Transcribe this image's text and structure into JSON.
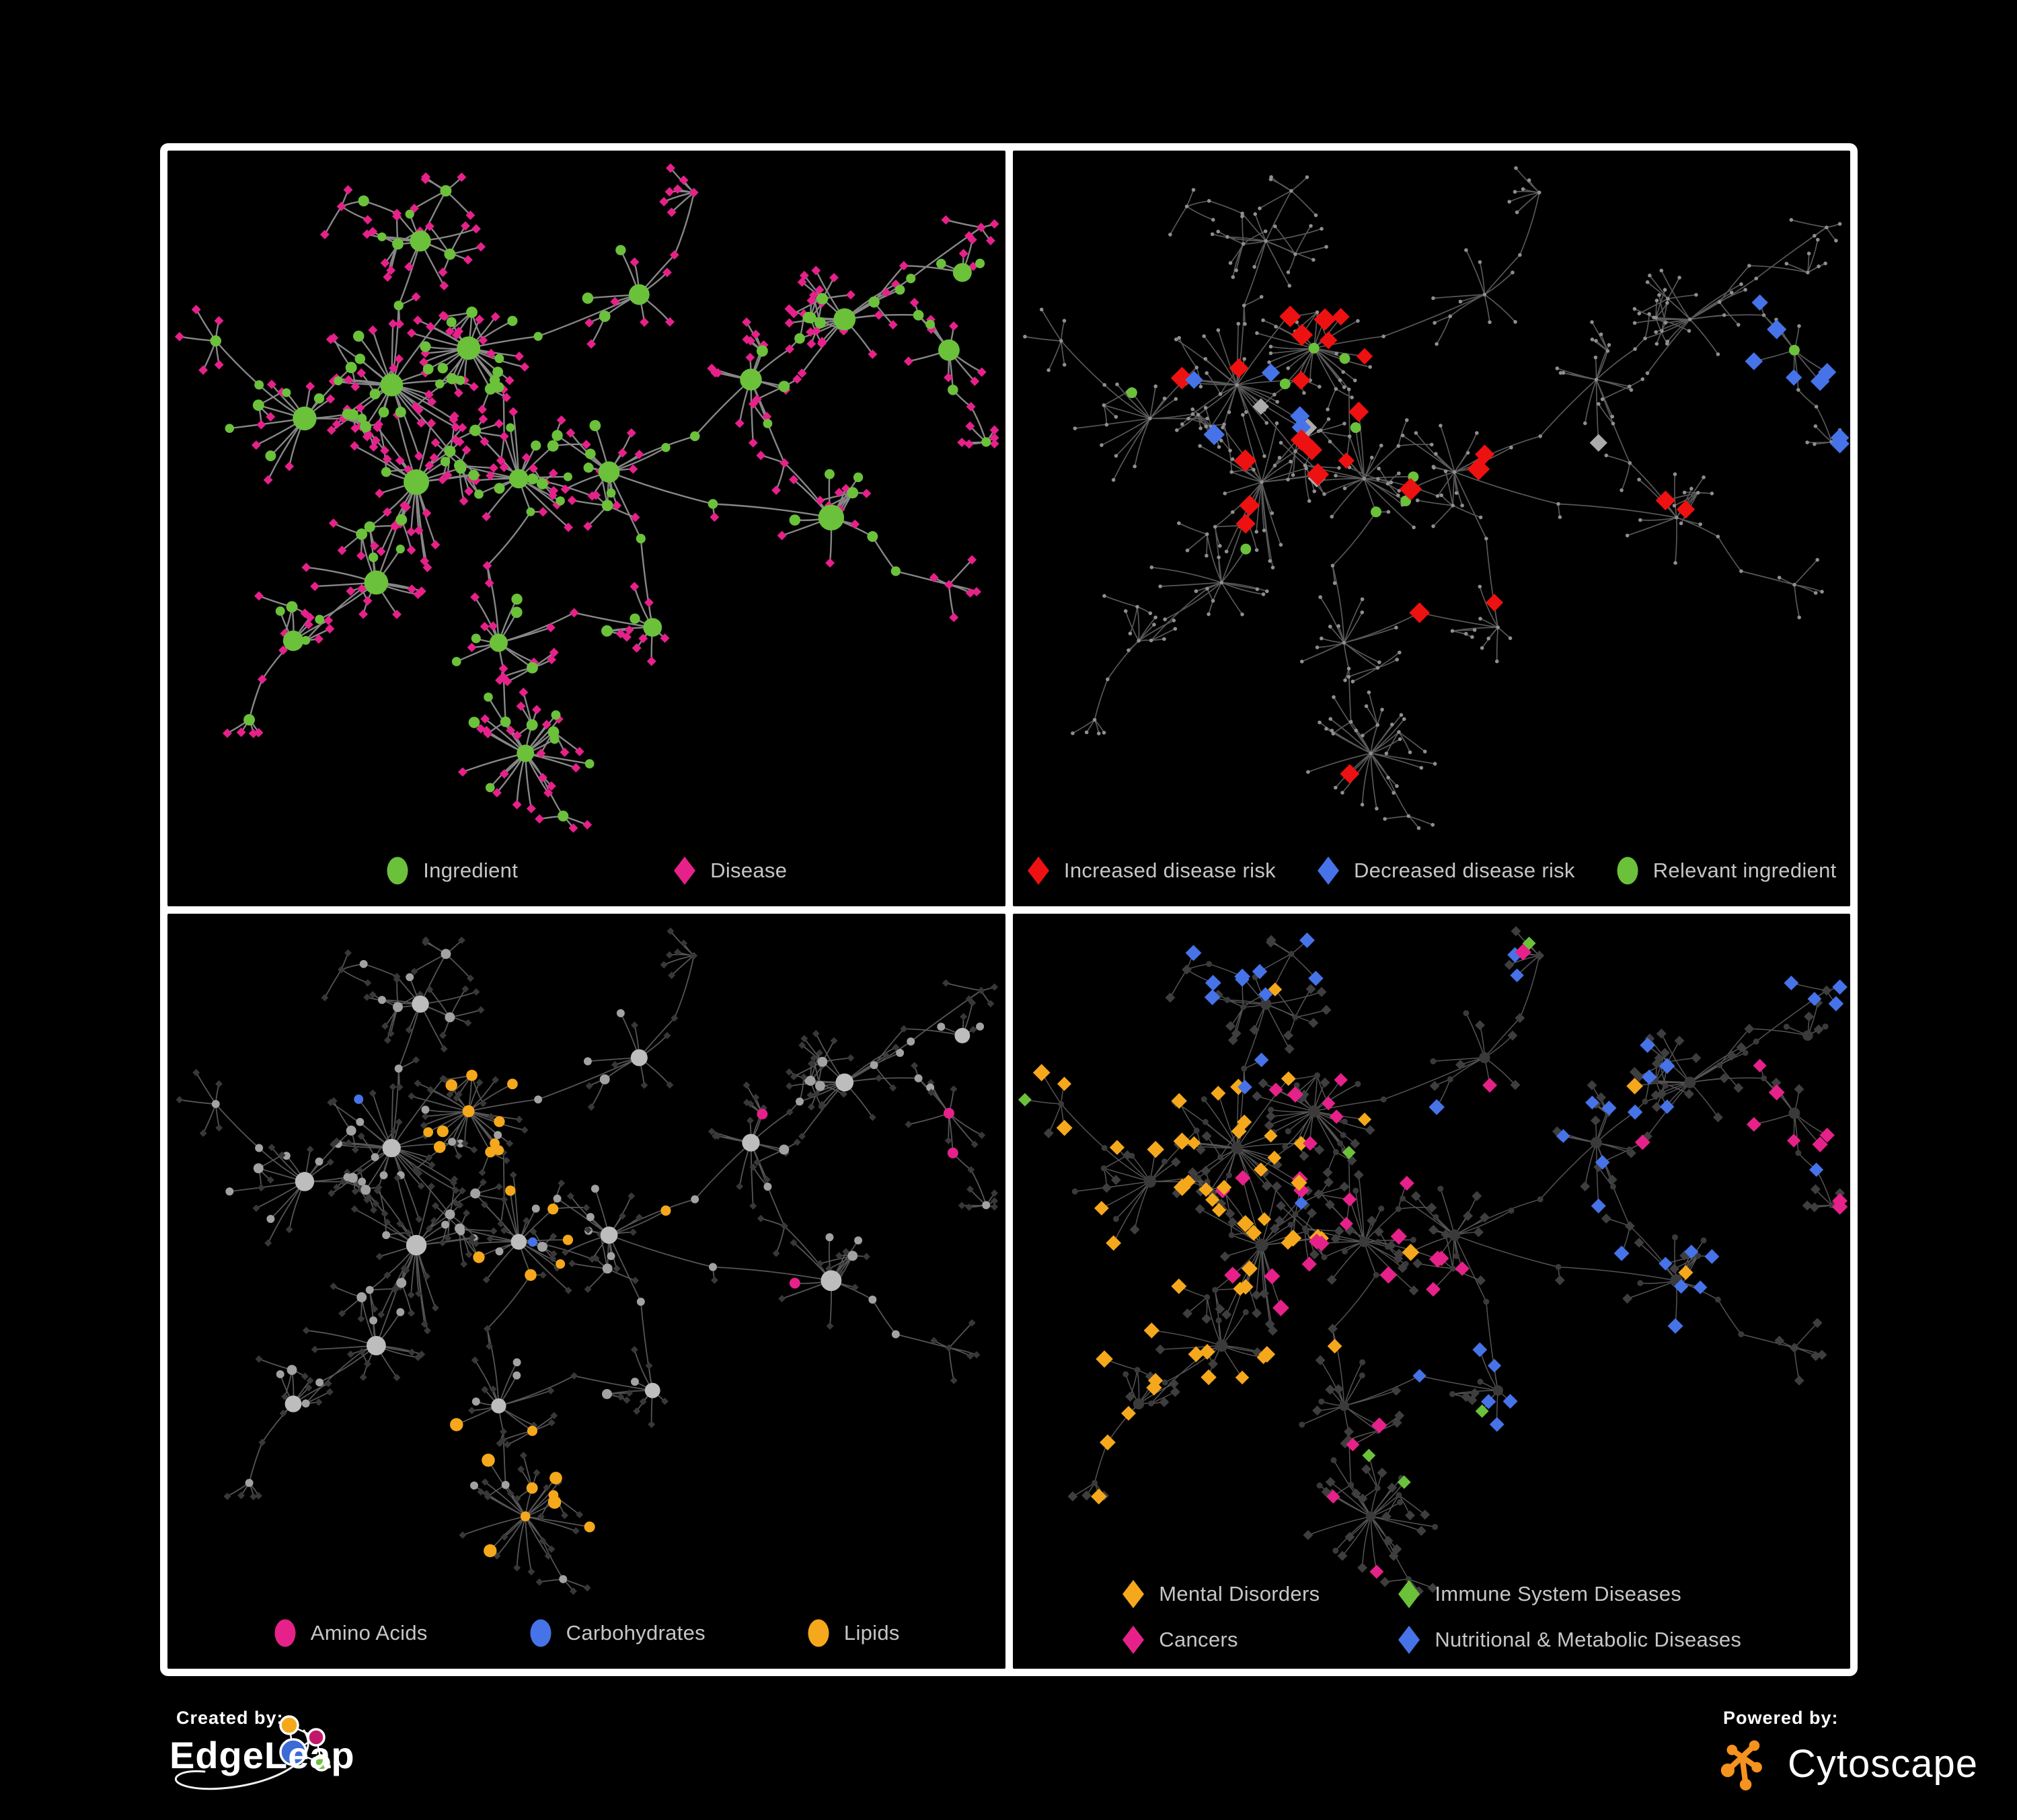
{
  "figure": {
    "background": "#000000",
    "frame_color": "#ffffff",
    "legend_text_color": "#c6c6c6"
  },
  "panels": [
    {
      "id": "ingredient-disease",
      "layout": "row-wide",
      "legend": [
        {
          "shape": "circle",
          "color": "#6cc13b",
          "label": "Ingredient"
        },
        {
          "shape": "diamond",
          "color": "#e6218a",
          "label": "Disease"
        }
      ]
    },
    {
      "id": "disease-risk",
      "layout": "row-compact",
      "legend": [
        {
          "shape": "diamond",
          "color": "#ee1111",
          "label": "Increased disease risk"
        },
        {
          "shape": "diamond",
          "color": "#4673e8",
          "label": "Decreased disease risk"
        },
        {
          "shape": "circle",
          "color": "#6cc13b",
          "label": "Relevant ingredient"
        }
      ]
    },
    {
      "id": "nutrient-classes",
      "layout": "row-mid",
      "legend": [
        {
          "shape": "circle",
          "color": "#e6218a",
          "label": "Amino Acids"
        },
        {
          "shape": "circle",
          "color": "#4673e8",
          "label": "Carbohydrates"
        },
        {
          "shape": "circle",
          "color": "#f5a81c",
          "label": "Lipids"
        }
      ]
    },
    {
      "id": "disease-categories",
      "layout": "grid",
      "legend": [
        {
          "shape": "diamond",
          "color": "#f5a81c",
          "label": "Mental Disorders"
        },
        {
          "shape": "diamond",
          "color": "#6cc13b",
          "label": "Immune System Diseases"
        },
        {
          "shape": "diamond",
          "color": "#e6218a",
          "label": "Cancers"
        },
        {
          "shape": "diamond",
          "color": "#4673e8",
          "label": "Nutritional & Metabolic Diseases"
        }
      ]
    }
  ],
  "network_style": {
    "green": "#6cc13b",
    "magenta": "#e6218a",
    "red": "#ee1111",
    "blue": "#4673e8",
    "orange": "#f5a81c",
    "gray_light": "#ababab",
    "gray_dot": "#8f8f8f",
    "ing_gray": "#a2a2a2",
    "hub_gray": "#bdbdbd",
    "dark": "#3e3e3e",
    "dark2": "#383838",
    "dark_circle": "#3a3a3a",
    "edge_style": [
      {
        "color": "#969696",
        "width": 2.4,
        "opacity": 0.9
      },
      {
        "color": "#6e6e6e",
        "width": 1.7,
        "opacity": 0.8
      },
      {
        "color": "#9c9c9c",
        "width": 1.8,
        "opacity": 0.55
      },
      {
        "color": "#8c8c8c",
        "width": 1.5,
        "opacity": 0.6
      }
    ]
  },
  "footer": {
    "created_by": {
      "caption": "Created by:",
      "brand": "EdgeLeap"
    },
    "powered_by": {
      "caption": "Powered by:",
      "brand": "Cytoscape",
      "accent": "#f6921e"
    }
  }
}
